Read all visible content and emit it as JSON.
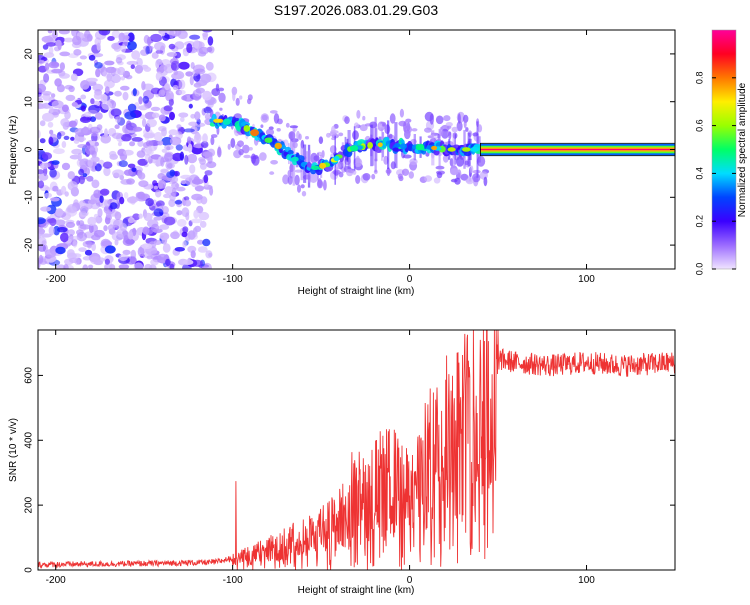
{
  "title": "S197.2026.083.01.29.G03",
  "chart_data": [
    {
      "type": "heatmap",
      "name": "spectrogram",
      "xlabel": "Height of straight line (km)",
      "ylabel": "Frequency (Hz)",
      "xlim": [
        -210,
        150
      ],
      "ylim": [
        -25,
        25
      ],
      "xticks": [
        -200,
        -100,
        0,
        100
      ],
      "yticks": [
        -20,
        -10,
        0,
        10,
        20
      ],
      "colorbar": {
        "label": "Normalized spectral amplitude",
        "range": [
          0,
          1
        ],
        "ticks": [
          0.0,
          0.2,
          0.4,
          0.6,
          0.8
        ],
        "tick_labels": [
          "0.0",
          "0.2",
          "0.4",
          "0.6",
          "0.8"
        ],
        "colors": [
          "#f0e4ff",
          "#9b6bff",
          "#3a00ff",
          "#0044ff",
          "#00ddff",
          "#00ff66",
          "#99ff00",
          "#ffee00",
          "#ff7700",
          "#ff0022",
          "#ff0099"
        ]
      },
      "features": [
        {
          "label": "noise",
          "x_range": [
            -210,
            -112
          ],
          "freq_range": [
            -25,
            25
          ],
          "amplitude": 0.12
        },
        {
          "label": "track",
          "points": [
            [
              -120,
              6
            ],
            [
              -105,
              6
            ],
            [
              -95,
              5
            ],
            [
              -85,
              3
            ],
            [
              -75,
              1
            ],
            [
              -65,
              -2
            ],
            [
              -55,
              -4
            ],
            [
              -45,
              -3
            ],
            [
              -35,
              0
            ],
            [
              -20,
              1
            ],
            [
              -10,
              1
            ],
            [
              0,
              0.5
            ],
            [
              10,
              0.5
            ],
            [
              20,
              0
            ],
            [
              35,
              0
            ],
            [
              40,
              0
            ]
          ],
          "amplitude": 0.35
        },
        {
          "label": "tone",
          "x_range": [
            40,
            150
          ],
          "freq": 0,
          "amplitude": 0.95
        }
      ]
    },
    {
      "type": "line",
      "name": "snr",
      "xlabel": "Height of straight line (km)",
      "ylabel": "SNR (10 * v/v)",
      "xlim": [
        -210,
        150
      ],
      "ylim": [
        0,
        740
      ],
      "xticks": [
        -200,
        -100,
        0,
        100
      ],
      "yticks": [
        0,
        200,
        400,
        600
      ],
      "color": "#ee3333",
      "series": [
        {
          "name": "SNR",
          "x": [
            -210,
            -150,
            -110,
            -100,
            -90,
            -80,
            -70,
            -60,
            -50,
            -40,
            -30,
            -20,
            -10,
            0,
            10,
            20,
            30,
            40,
            45,
            50,
            60,
            80,
            100,
            120,
            150
          ],
          "values": [
            15,
            18,
            22,
            35,
            55,
            75,
            95,
            120,
            140,
            180,
            260,
            300,
            320,
            260,
            390,
            470,
            540,
            590,
            560,
            650,
            640,
            630,
            640,
            630,
            640
          ]
        }
      ]
    }
  ]
}
